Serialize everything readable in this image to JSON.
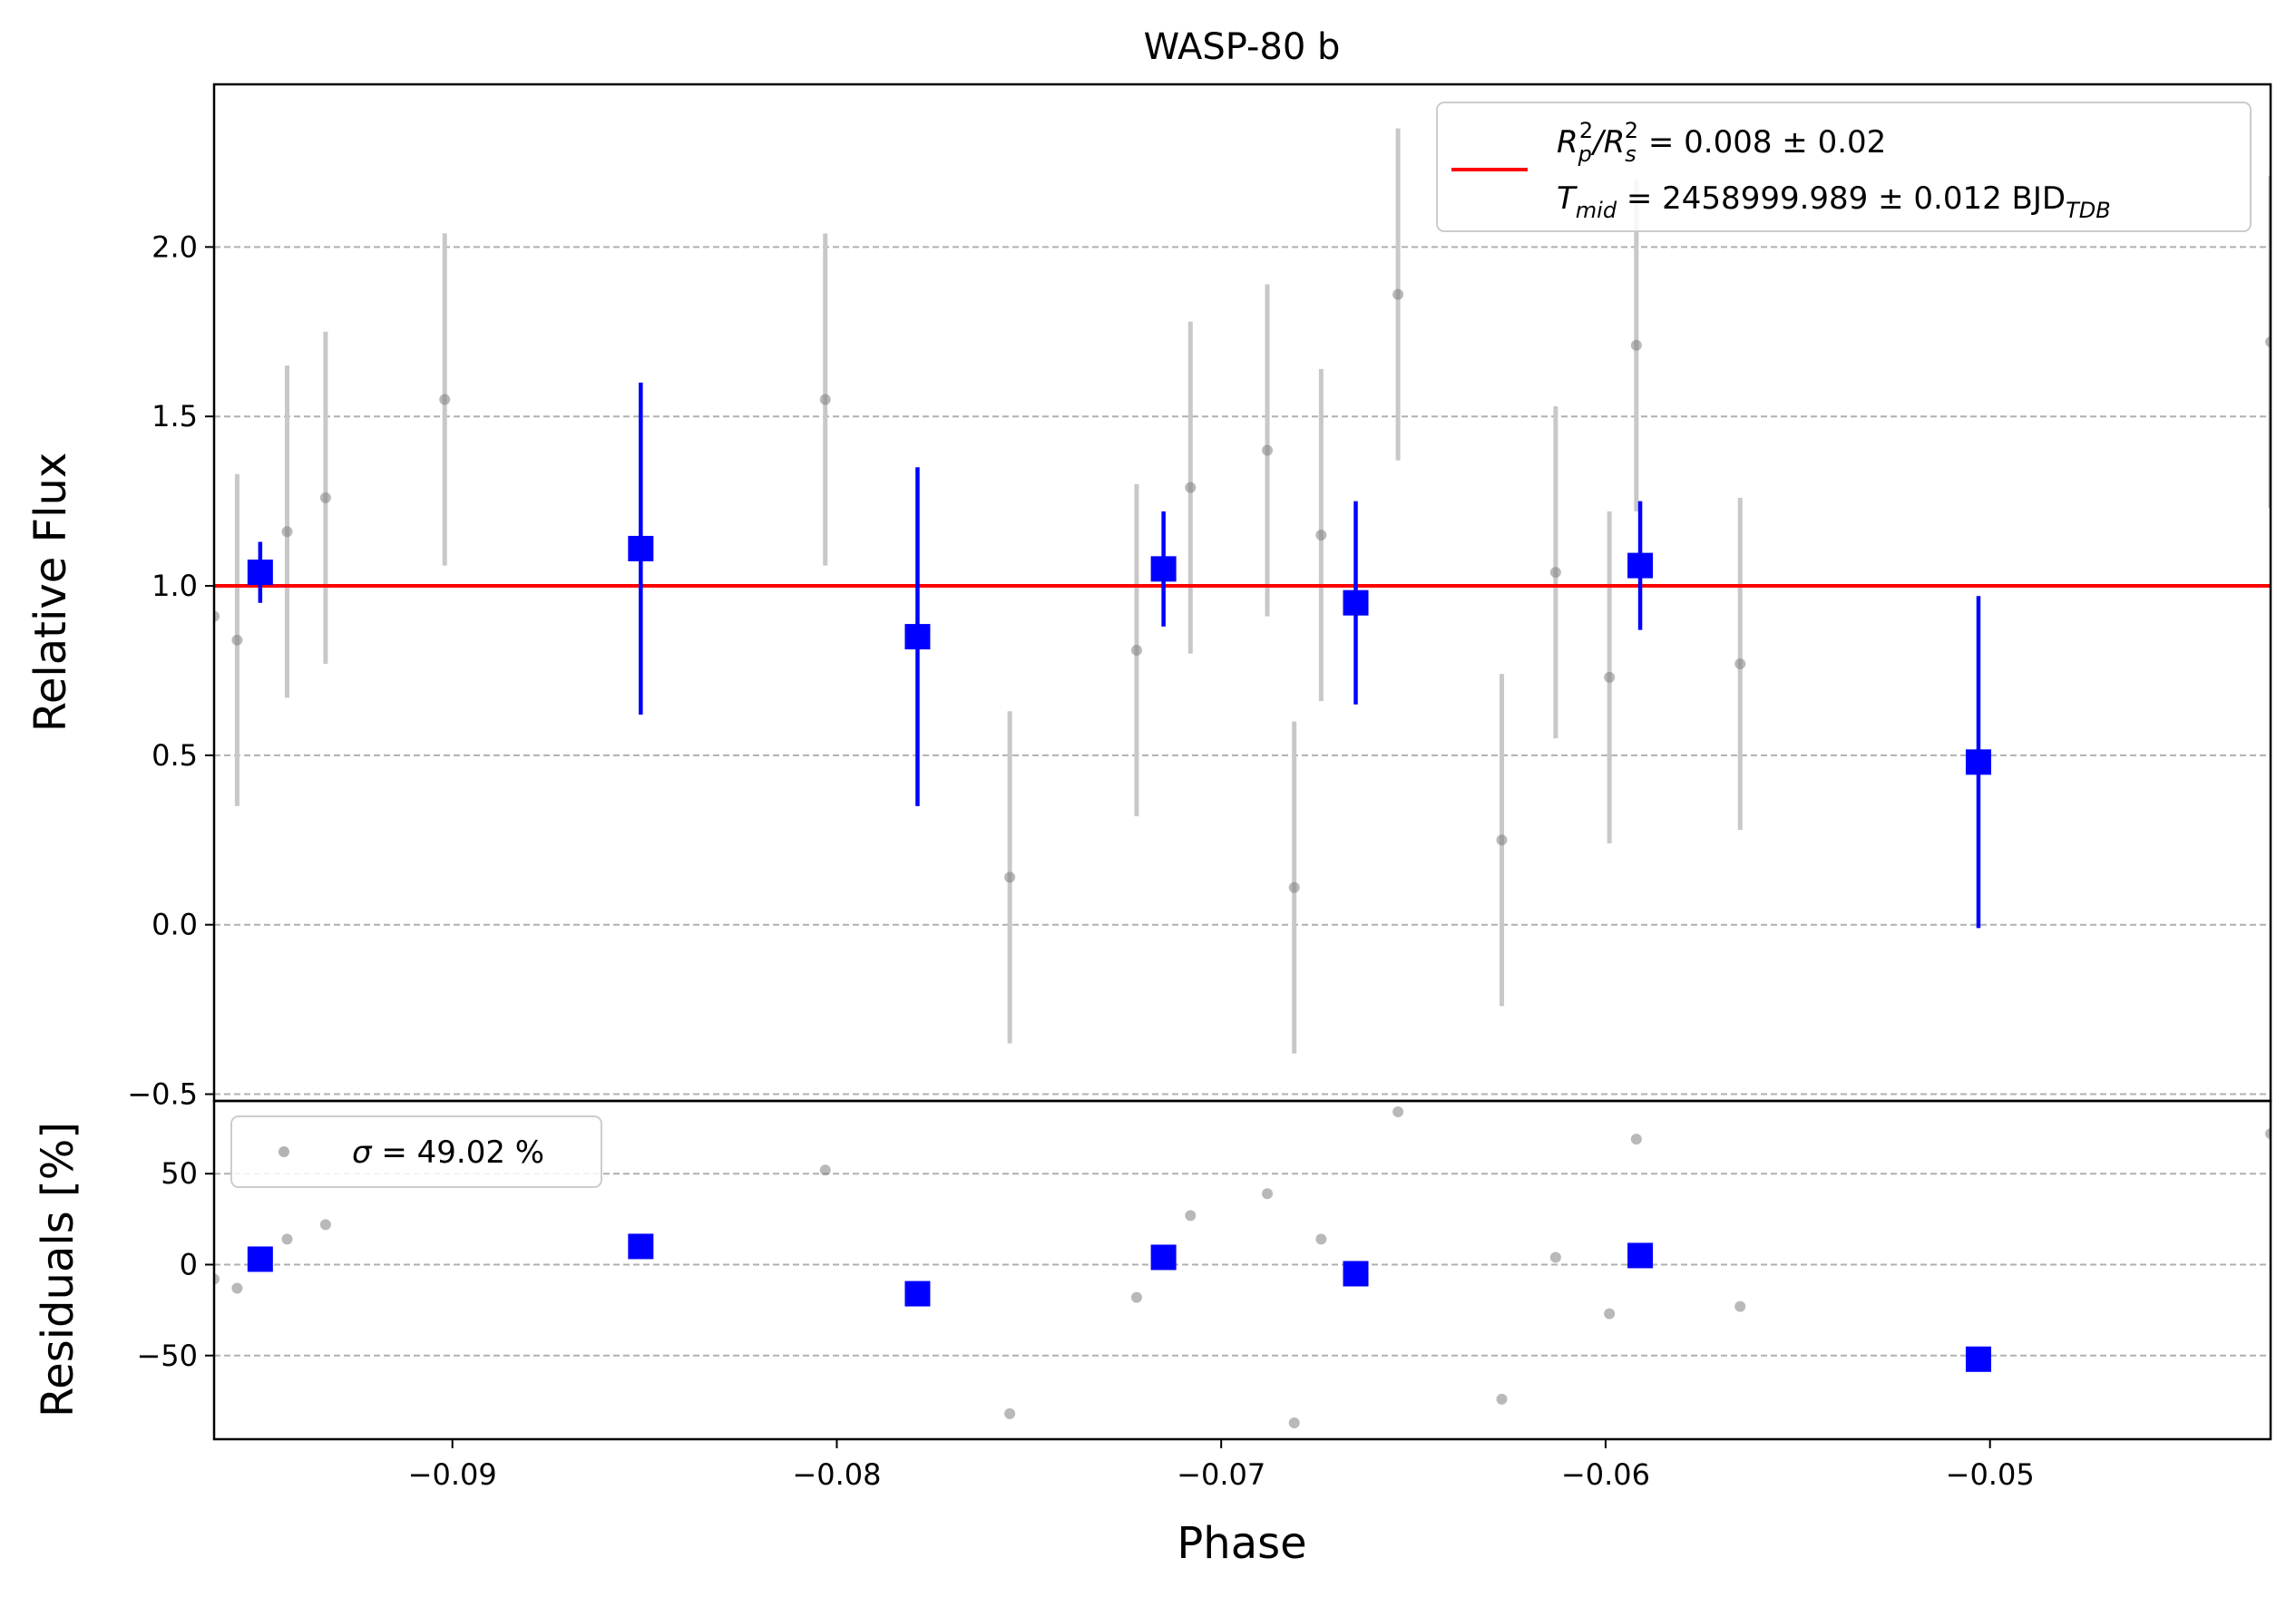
{
  "chart_data": [
    {
      "type": "scatter",
      "panel": "main",
      "title": "WASP-80 b",
      "xlabel": "",
      "ylabel": "Relative Flux",
      "xlim": [
        -0.0962,
        -0.0427
      ],
      "ylim": [
        -0.52,
        2.48
      ],
      "yticks": [
        -0.5,
        0.0,
        0.5,
        1.0,
        1.5,
        2.0
      ],
      "ytick_labels": [
        "−0.5",
        "0.0",
        "0.5",
        "1.0",
        "1.5",
        "2.0"
      ],
      "grid": "horizontal dashed",
      "legend": {
        "placement": "top-right",
        "line1": {
          "lhs": "R",
          "sub1": "p",
          "sup1": "2",
          "mid": "/R",
          "sub2": "s",
          "sup2": "2",
          "rhs": " = 0.008 ± 0.02"
        },
        "line2": {
          "lhs": "T",
          "sub": "mid",
          "rhs": " = 2458999.989 ± 0.012 BJD",
          "rhs_sub": "TDB"
        }
      },
      "model_line": {
        "y": 1.0,
        "color": "#ff0000"
      },
      "colors": {
        "raw": "#808080",
        "raw_error": "#c8c8c8",
        "binned": "#0000ff"
      },
      "raw_points": [
        {
          "x": -0.0962,
          "y": 0.91,
          "err": 0.0
        },
        {
          "x": -0.0956,
          "y": 0.84,
          "err": 0.49
        },
        {
          "x": -0.0943,
          "y": 1.16,
          "err": 0.49
        },
        {
          "x": -0.0933,
          "y": 1.26,
          "err": 0.49
        },
        {
          "x": -0.0902,
          "y": 1.55,
          "err": 0.49
        },
        {
          "x": -0.0803,
          "y": 1.55,
          "err": 0.49
        },
        {
          "x": -0.0755,
          "y": 0.14,
          "err": 0.49
        },
        {
          "x": -0.0722,
          "y": 0.81,
          "err": 0.49
        },
        {
          "x": -0.0708,
          "y": 1.29,
          "err": 0.49
        },
        {
          "x": -0.0688,
          "y": 1.4,
          "err": 0.49
        },
        {
          "x": -0.0681,
          "y": 0.11,
          "err": 0.49
        },
        {
          "x": -0.0674,
          "y": 1.15,
          "err": 0.49
        },
        {
          "x": -0.0654,
          "y": 1.86,
          "err": 0.49
        },
        {
          "x": -0.0627,
          "y": 0.25,
          "err": 0.49
        },
        {
          "x": -0.0613,
          "y": 1.04,
          "err": 0.49
        },
        {
          "x": -0.0599,
          "y": 0.73,
          "err": 0.49
        },
        {
          "x": -0.0592,
          "y": 1.71,
          "err": 0.49
        },
        {
          "x": -0.0565,
          "y": 0.77,
          "err": 0.49
        },
        {
          "x": -0.0427,
          "y": 1.72,
          "err": 0.49
        }
      ],
      "binned_points": [
        {
          "x": -0.095,
          "y": 1.04,
          "err": 0.09
        },
        {
          "x": -0.0851,
          "y": 1.11,
          "err": 0.49
        },
        {
          "x": -0.0779,
          "y": 0.85,
          "err": 0.5
        },
        {
          "x": -0.0715,
          "y": 1.05,
          "err": 0.17
        },
        {
          "x": -0.0665,
          "y": 0.95,
          "err": 0.3
        },
        {
          "x": -0.0591,
          "y": 1.06,
          "err": 0.19
        },
        {
          "x": -0.0503,
          "y": 0.48,
          "err": 0.49
        }
      ]
    },
    {
      "type": "scatter",
      "panel": "residuals",
      "xlabel": "Phase",
      "ylabel": "Residuals [%]",
      "xlim": [
        -0.0962,
        -0.0427
      ],
      "ylim": [
        -96,
        90
      ],
      "xticks": [
        -0.09,
        -0.08,
        -0.07,
        -0.06,
        -0.05
      ],
      "xtick_labels": [
        "−0.09",
        "−0.08",
        "−0.07",
        "−0.06",
        "−0.05"
      ],
      "yticks": [
        -50,
        0,
        50
      ],
      "ytick_labels": [
        "−50",
        "0",
        "50"
      ],
      "grid": "horizontal dashed",
      "legend": {
        "placement": "top-left",
        "symbol": "σ",
        "text": " = 49.02 %"
      },
      "raw_points": [
        {
          "x": -0.0962,
          "y": -8
        },
        {
          "x": -0.0956,
          "y": -13
        },
        {
          "x": -0.0943,
          "y": 14
        },
        {
          "x": -0.0933,
          "y": 22
        },
        {
          "x": -0.0803,
          "y": 52
        },
        {
          "x": -0.0755,
          "y": -82
        },
        {
          "x": -0.0722,
          "y": -18
        },
        {
          "x": -0.0708,
          "y": 27
        },
        {
          "x": -0.0688,
          "y": 39
        },
        {
          "x": -0.0681,
          "y": -87
        },
        {
          "x": -0.0674,
          "y": 14
        },
        {
          "x": -0.0654,
          "y": 84
        },
        {
          "x": -0.0627,
          "y": -74
        },
        {
          "x": -0.0613,
          "y": 4
        },
        {
          "x": -0.0599,
          "y": -27
        },
        {
          "x": -0.0592,
          "y": 69
        },
        {
          "x": -0.0565,
          "y": -23
        },
        {
          "x": -0.0427,
          "y": 72
        }
      ],
      "binned_points": [
        {
          "x": -0.095,
          "y": 3
        },
        {
          "x": -0.0851,
          "y": 10
        },
        {
          "x": -0.0779,
          "y": -16
        },
        {
          "x": -0.0715,
          "y": 4
        },
        {
          "x": -0.0665,
          "y": -5
        },
        {
          "x": -0.0591,
          "y": 5
        },
        {
          "x": -0.0503,
          "y": -52
        }
      ]
    }
  ]
}
